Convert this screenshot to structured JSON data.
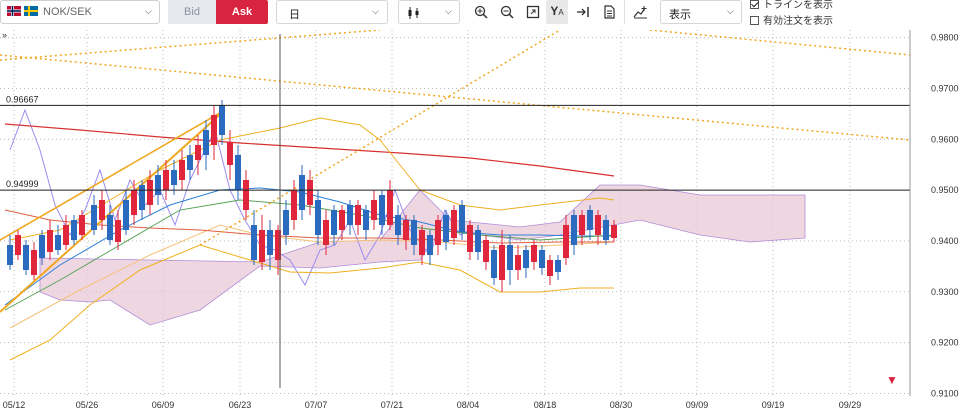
{
  "toolbar": {
    "pair": "NOK/SEK",
    "bid_label": "Bid",
    "ask_label": "Ask",
    "period": "日",
    "display_select": "表示",
    "option_trendline": "トラインを表示",
    "option_orders": "有効注文を表示",
    "trendline_checked": true,
    "orders_checked": false
  },
  "colors": {
    "ask": "#d8243f",
    "bid_bg": "#e6e9ee",
    "bull": "#e0263c",
    "bear": "#2a6abf",
    "cloud": "#e8c6d6",
    "ma_long": "#d93030",
    "trend": "#f0a820"
  },
  "chart": {
    "hline_labels": [
      "0.96667",
      "0.94999"
    ],
    "hlines": [
      0.96667,
      0.94999
    ]
  },
  "chart_data": {
    "type": "candlestick",
    "y_ticks": [
      "0.9800",
      "0.9700",
      "0.9600",
      "0.9500",
      "0.9400",
      "0.9300",
      "0.9200",
      "0.9100"
    ],
    "x_ticks": [
      "05/12",
      "05/26",
      "06/09",
      "06/23",
      "07/07",
      "07/21",
      "08/04",
      "08/18",
      "08/30",
      "09/09",
      "09/19",
      "09/29"
    ],
    "ylim": [
      0.9095,
      0.9815
    ],
    "last_marker": "▼"
  }
}
